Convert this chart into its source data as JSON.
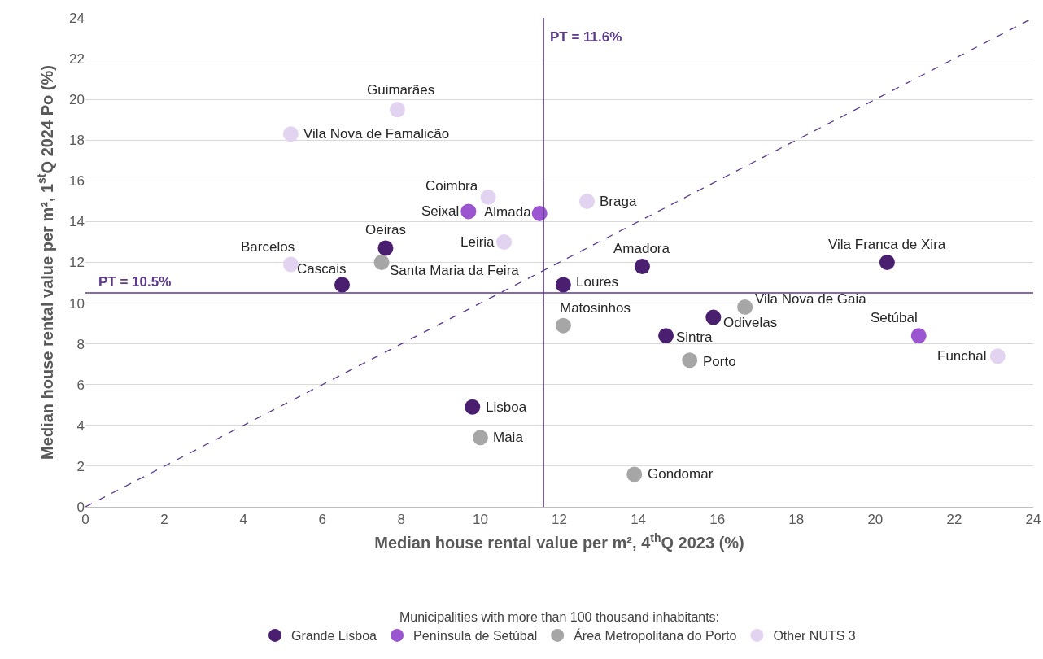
{
  "chart_data": {
    "type": "scatter",
    "xlabel": "Median house rental value per m², 4$^{th}$Q 2023 (%)",
    "ylabel": "Median house rental value per m², 1$^{st}$Q 2024 Po (%)",
    "legend_title": "Municipalities with more than 100 thousand inhabitants:",
    "legend": "bottom",
    "grid": "y",
    "marker": "circle",
    "xlim": [
      0,
      24
    ],
    "ylim": [
      0,
      24
    ],
    "xticks": [
      0,
      2,
      4,
      6,
      8,
      10,
      12,
      14,
      16,
      18,
      20,
      22,
      24
    ],
    "yticks": [
      0,
      2,
      4,
      6,
      8,
      10,
      12,
      14,
      16,
      18,
      20,
      22,
      24
    ],
    "series": [
      {
        "name": "Grande Lisboa",
        "color": "#4b1f6f",
        "x": [
          7.6,
          6.5,
          14.1,
          20.3,
          12.1,
          15.9,
          14.7,
          9.8
        ],
        "values": [
          12.7,
          10.9,
          11.8,
          12.0,
          10.9,
          9.3,
          8.4,
          4.9
        ]
      },
      {
        "name": "Península de Setúbal",
        "color": "#9b55d0",
        "x": [
          9.7,
          11.5,
          21.1
        ],
        "values": [
          14.5,
          14.4,
          8.4
        ]
      },
      {
        "name": "Área Metropolitana do Porto",
        "color": "#a6a6a6",
        "x": [
          7.5,
          16.7,
          12.1,
          15.3,
          10.0,
          13.9
        ],
        "values": [
          12.0,
          9.8,
          8.9,
          7.2,
          3.4,
          1.6
        ]
      },
      {
        "name": "Other NUTS 3",
        "color": "#e2d3f0",
        "x": [
          7.9,
          5.2,
          10.2,
          12.7,
          10.6,
          5.2,
          23.1
        ],
        "values": [
          19.5,
          18.3,
          15.2,
          15.0,
          13.0,
          11.9,
          7.4
        ]
      },
      {
        "type": "line",
        "color": "#5b3a8a",
        "line_style": "dashed",
        "marker": "none",
        "x": [
          0,
          24
        ],
        "values": [
          0,
          24
        ]
      }
    ],
    "ref_lines": [
      {
        "axis": "x",
        "value": 11.6,
        "label": "PT = 11.6%",
        "color": "#5b3a8a"
      },
      {
        "axis": "y",
        "value": 10.5,
        "label": "PT = 10.5%",
        "color": "#5b3a8a"
      }
    ],
    "annotations": [
      {
        "text": "Oeiras",
        "x": 7.6,
        "y": 12.7
      },
      {
        "text": "Cascais",
        "x": 6.5,
        "y": 10.9
      },
      {
        "text": "Amadora",
        "x": 14.1,
        "y": 11.8
      },
      {
        "text": "Vila Franca de Xira",
        "x": 20.3,
        "y": 12.0
      },
      {
        "text": "Loures",
        "x": 12.1,
        "y": 10.9
      },
      {
        "text": "Odivelas",
        "x": 15.9,
        "y": 9.3
      },
      {
        "text": "Sintra",
        "x": 14.7,
        "y": 8.4
      },
      {
        "text": "Lisboa",
        "x": 9.8,
        "y": 4.9
      },
      {
        "text": "Seixal",
        "x": 9.7,
        "y": 14.5
      },
      {
        "text": "Almada",
        "x": 11.5,
        "y": 14.4
      },
      {
        "text": "Setúbal",
        "x": 21.1,
        "y": 8.4
      },
      {
        "text": "Santa Maria da Feira",
        "x": 7.5,
        "y": 12.0
      },
      {
        "text": "Vila Nova de Gaia",
        "x": 16.7,
        "y": 9.8
      },
      {
        "text": "Matosinhos",
        "x": 12.1,
        "y": 8.9
      },
      {
        "text": "Porto",
        "x": 15.3,
        "y": 7.2
      },
      {
        "text": "Maia",
        "x": 10.0,
        "y": 3.4
      },
      {
        "text": "Gondomar",
        "x": 13.9,
        "y": 1.6
      },
      {
        "text": "Guimarães",
        "x": 7.9,
        "y": 19.5
      },
      {
        "text": "Vila Nova de Famalicão",
        "x": 5.2,
        "y": 18.3
      },
      {
        "text": "Coimbra",
        "x": 10.2,
        "y": 15.2
      },
      {
        "text": "Braga",
        "x": 12.7,
        "y": 15.0
      },
      {
        "text": "Leiria",
        "x": 10.6,
        "y": 13.0
      },
      {
        "text": "Barcelos",
        "x": 5.2,
        "y": 11.9
      },
      {
        "text": "Funchal",
        "x": 23.1,
        "y": 7.4
      }
    ]
  }
}
